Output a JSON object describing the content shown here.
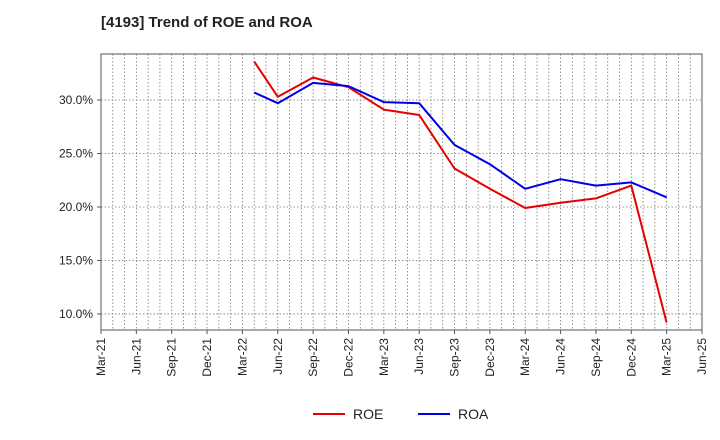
{
  "title": "[4193]  Trend of ROE and ROA",
  "chart_data": {
    "type": "line",
    "title": "[4193]  Trend of ROE and ROA",
    "xlabel": "",
    "ylabel": "",
    "x_ticks": [
      "Mar-21",
      "Jun-21",
      "Sep-21",
      "Dec-21",
      "Mar-22",
      "Jun-22",
      "Sep-22",
      "Dec-22",
      "Mar-23",
      "Jun-23",
      "Sep-23",
      "Dec-23",
      "Mar-24",
      "Jun-24",
      "Sep-24",
      "Dec-24",
      "Mar-25",
      "Jun-25"
    ],
    "y_ticks": [
      10,
      15,
      20,
      25,
      30
    ],
    "y_tick_labels": [
      "10.0%",
      "15.0%",
      "20.0%",
      "25.0%",
      "30.0%"
    ],
    "ylim": [
      8.5,
      34.3
    ],
    "grid": true,
    "legend_position": "bottom-center",
    "series": [
      {
        "name": "ROE",
        "color": "#e60000",
        "points": [
          [
            "Apr-22",
            33.6
          ],
          [
            "Jun-22",
            30.3
          ],
          [
            "Sep-22",
            32.1
          ],
          [
            "Dec-22",
            31.2
          ],
          [
            "Mar-23",
            29.1
          ],
          [
            "Jun-23",
            28.6
          ],
          [
            "Sep-23",
            23.6
          ],
          [
            "Dec-23",
            21.7
          ],
          [
            "Mar-24",
            19.9
          ],
          [
            "Jun-24",
            20.4
          ],
          [
            "Sep-24",
            20.8
          ],
          [
            "Dec-24",
            22.0
          ],
          [
            "Mar-25",
            9.2
          ]
        ]
      },
      {
        "name": "ROA",
        "color": "#0000e6",
        "points": [
          [
            "Apr-22",
            30.7
          ],
          [
            "Jun-22",
            29.7
          ],
          [
            "Sep-22",
            31.6
          ],
          [
            "Dec-22",
            31.3
          ],
          [
            "Mar-23",
            29.8
          ],
          [
            "Jun-23",
            29.7
          ],
          [
            "Sep-23",
            25.8
          ],
          [
            "Dec-23",
            24.0
          ],
          [
            "Mar-24",
            21.7
          ],
          [
            "Jun-24",
            22.6
          ],
          [
            "Sep-24",
            22.0
          ],
          [
            "Dec-24",
            22.3
          ],
          [
            "Mar-25",
            20.9
          ]
        ]
      }
    ]
  }
}
